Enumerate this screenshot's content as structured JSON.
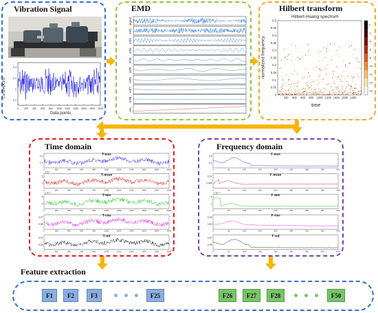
{
  "colors": {
    "blue": "#2f6fd6",
    "green": "#8cc83c",
    "orange": "#f5a623",
    "red": "#e21b1b",
    "purple": "#7a3fb0",
    "arrow": "#f7b500",
    "fblue": "#8aaee0",
    "fgreen": "#79c46a"
  },
  "vibration": {
    "title": "Vibration Signal",
    "ylabel": "Current(A,10)",
    "xlabel": "Data points",
    "xticks": [
      "0",
      "200",
      "400",
      "600",
      "800",
      "1000",
      "1200",
      "1400",
      "1600",
      "1800",
      "2000"
    ],
    "yticks": [
      "0.4",
      "0.2",
      "0",
      "-0.2"
    ]
  },
  "emd": {
    "title": "EMD",
    "rows": [
      "signal",
      "imf1",
      "imf2",
      "imf3",
      "imf4",
      "imf5",
      "imf6",
      "imf7",
      "imf8",
      "res."
    ]
  },
  "hilbert": {
    "title": "Hilbert transform",
    "chart_title": "Hilbert-Huang spectrum",
    "ylabel": "normalized frequency",
    "xlabel": "time",
    "xticks": [
      "200",
      "400",
      "600",
      "800",
      "1000",
      "1200",
      "1400",
      "1600",
      "1800"
    ],
    "yticks": [
      "0.5",
      "0.45",
      "0.4",
      "0.35",
      "0.3",
      "0.25",
      "0.2",
      "0.15",
      "0.1",
      "0.05",
      "0"
    ],
    "cbar_ticks": [
      "0",
      "-2",
      "-4",
      "-6",
      "-8",
      "-10",
      "-12",
      "-14",
      "-16"
    ]
  },
  "time_domain": {
    "title": "Time domain",
    "plots": [
      {
        "label": "T-max",
        "color": "#1a1aff",
        "yticks": [
          "0.2",
          "0.1"
        ],
        "exp": ""
      },
      {
        "label": "T-mean",
        "color": "#e01010",
        "yticks": [
          "5",
          "0"
        ],
        "exp": "x 10⁻³"
      },
      {
        "label": "T-mse",
        "color": "#10c010",
        "yticks": [
          "5",
          "0"
        ],
        "exp": "x 10⁻³"
      },
      {
        "label": "T-rms",
        "color": "#e010e0",
        "yticks": [
          "0.07",
          "0.05"
        ],
        "exp": ""
      },
      {
        "label": "T-std",
        "color": "#111111",
        "yticks": [
          "0.07",
          "0.05"
        ],
        "exp": ""
      }
    ],
    "xticks": [
      "0",
      "200",
      "400",
      "600",
      "800",
      "1000",
      "1200",
      "1400",
      "1600",
      "1800",
      "2000"
    ]
  },
  "freq_domain": {
    "title": "Frequency domain",
    "plots": [
      {
        "label": "F-max",
        "color": "#1a1aff",
        "yticks": [
          "0.2",
          "0.1"
        ],
        "exp": ""
      },
      {
        "label": "F-mean",
        "color": "#e01010",
        "yticks": [
          "0.01",
          "0.005"
        ],
        "exp": ""
      },
      {
        "label": "F-mse",
        "color": "#10c010",
        "yticks": [
          "4",
          "2"
        ],
        "exp": "x 10⁻⁴"
      },
      {
        "label": "F-rms",
        "color": "#e010e0",
        "yticks": [
          "0.04",
          "0.02"
        ],
        "exp": ""
      },
      {
        "label": "F-std",
        "color": "#111111",
        "yticks": [
          "0.07",
          "0.05"
        ],
        "exp": ""
      }
    ],
    "xticks": [
      "0",
      "50",
      "100",
      "150",
      "200",
      "250",
      "300",
      "350",
      "400"
    ]
  },
  "features": {
    "title": "Feature extraction",
    "time_feats": [
      "F1",
      "F2",
      "F3"
    ],
    "time_last": "F25",
    "freq_feats": [
      "F26",
      "F27",
      "F28"
    ],
    "freq_last": "F50"
  }
}
